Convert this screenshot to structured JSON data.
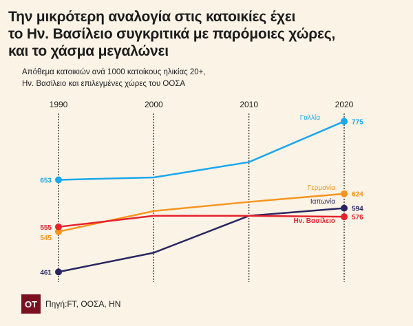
{
  "header": {
    "title_lines": [
      "Την μικρότερη αναλογία στις κατοικίες έχει",
      "το Ην. Βασίλειο συγκριτικά με παρόμοιες χώρες,",
      "και το χάσμα μεγαλώνει"
    ],
    "subtitle_lines": [
      "Απόθεμα κατοικιών ανά 1000 κατοίκους ηλικίας 20+,",
      "Ην. Βασίλειο και επιλεγμένες χώρες του ΟΟΣΑ"
    ]
  },
  "footer": {
    "logo": "OT",
    "source": "Πηγή:FT, ΟΟΣΑ, ΗΝ"
  },
  "chart_data": {
    "type": "line",
    "title": "",
    "xlabel": "",
    "ylabel": "",
    "x_ticks": [
      "1990",
      "2000",
      "2010",
      "2020"
    ],
    "ylim": [
      440,
      800
    ],
    "grid": "dotted vertical lines at ticks",
    "series": [
      {
        "name": "Γαλλία",
        "color": "#1aa7ec",
        "points": [
          [
            1990,
            653
          ],
          [
            2000,
            658
          ],
          [
            2010,
            690
          ],
          [
            2020,
            775
          ]
        ],
        "start_label": "653",
        "end_label": "775"
      },
      {
        "name": "Γερμανία",
        "color": "#f7941d",
        "points": [
          [
            1990,
            545
          ],
          [
            2000,
            588
          ],
          [
            2010,
            607
          ],
          [
            2020,
            624
          ]
        ],
        "start_label": "545",
        "end_label": "624"
      },
      {
        "name": "Ιαπωνία",
        "color": "#2a2560",
        "points": [
          [
            1990,
            461
          ],
          [
            2000,
            501
          ],
          [
            2010,
            578
          ],
          [
            2020,
            594
          ]
        ],
        "start_label": "461",
        "end_label": "594"
      },
      {
        "name": "Ην. Βασίλειο",
        "color": "#e4232d",
        "points": [
          [
            1990,
            555
          ],
          [
            2000,
            578
          ],
          [
            2010,
            578
          ],
          [
            2020,
            576
          ]
        ],
        "start_label": "555",
        "end_label": "576"
      }
    ]
  }
}
